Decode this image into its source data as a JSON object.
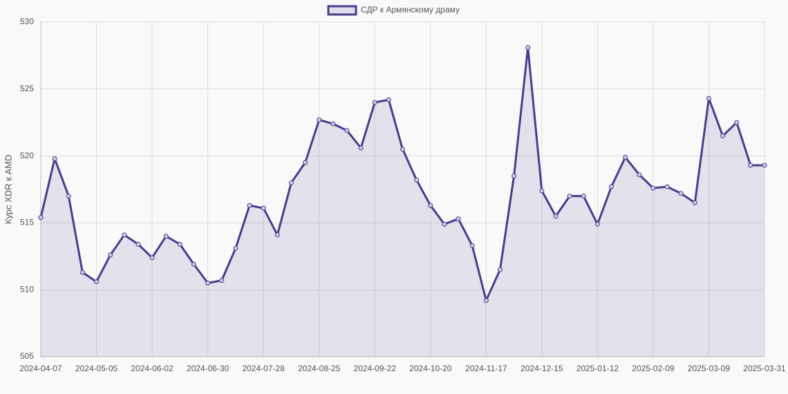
{
  "chart_data": {
    "type": "line",
    "y_label": "Курс XDR к AMD",
    "categories": [
      "2024-04-07",
      null,
      null,
      null,
      "2024-05-05",
      null,
      null,
      null,
      "2024-06-02",
      null,
      null,
      null,
      "2024-06-30",
      null,
      null,
      null,
      "2024-07-28",
      null,
      null,
      null,
      "2024-08-25",
      null,
      null,
      null,
      "2024-09-22",
      null,
      null,
      null,
      "2024-10-20",
      null,
      null,
      null,
      "2024-11-17",
      null,
      null,
      null,
      "2024-12-15",
      null,
      null,
      null,
      "2025-01-12",
      null,
      null,
      null,
      "2025-02-09",
      null,
      null,
      null,
      "2025-03-09",
      null,
      null,
      null,
      "2025-03-31"
    ],
    "series": [
      {
        "name": "СДР к Армянскому драму",
        "color": "#483d8b",
        "values": [
          515.4,
          519.8,
          517.0,
          511.3,
          510.6,
          512.6,
          514.1,
          513.4,
          512.4,
          514.0,
          513.4,
          511.9,
          510.5,
          510.7,
          513.1,
          516.3,
          516.1,
          514.1,
          518.0,
          519.5,
          522.7,
          522.4,
          521.9,
          520.6,
          524.0,
          524.2,
          520.5,
          518.2,
          516.3,
          514.9,
          515.3,
          513.3,
          509.2,
          511.5,
          518.5,
          528.1,
          517.4,
          515.5,
          517.0,
          517.0,
          514.9,
          517.7,
          519.9,
          518.6,
          517.6,
          517.7,
          517.2,
          516.5,
          524.3,
          521.5,
          522.5,
          519.3,
          519.3
        ]
      }
    ],
    "ylim": [
      505,
      530
    ],
    "yticks": [
      505,
      510,
      515,
      520,
      525,
      530
    ],
    "grid": true,
    "fill": true,
    "legend": "top"
  }
}
